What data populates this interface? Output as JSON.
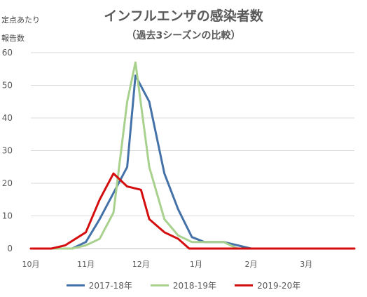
{
  "chart_data": {
    "type": "line",
    "title": "インフルエンザの感染者数",
    "subtitle": "（過去3シーズンの比較）",
    "ylabel_lines": [
      "定点あたり",
      "報告数"
    ],
    "ylim": [
      0,
      60
    ],
    "yticks": [
      0,
      10,
      20,
      30,
      40,
      50,
      60
    ],
    "x_range": [
      0,
      23.5
    ],
    "xticks": [
      {
        "label": "10月",
        "x": 0
      },
      {
        "label": "11月",
        "x": 4
      },
      {
        "label": "12月",
        "x": 8
      },
      {
        "label": "1月",
        "x": 12
      },
      {
        "label": "2月",
        "x": 16
      },
      {
        "label": "3月",
        "x": 20
      }
    ],
    "grid": true,
    "legend_position": "bottom",
    "series": [
      {
        "name": "2017-18年",
        "color": "#4472a8",
        "points": [
          [
            0,
            0
          ],
          [
            1.5,
            0
          ],
          [
            3,
            0
          ],
          [
            4,
            2
          ],
          [
            5,
            9
          ],
          [
            6,
            17
          ],
          [
            7,
            25
          ],
          [
            7.6,
            53
          ],
          [
            8.6,
            45
          ],
          [
            9.7,
            23
          ],
          [
            10.7,
            12
          ],
          [
            11.7,
            3.5
          ],
          [
            12.6,
            2
          ],
          [
            14,
            2
          ],
          [
            16,
            0
          ],
          [
            23.5,
            0
          ]
        ]
      },
      {
        "name": "2018-19年",
        "color": "#a9d18e",
        "points": [
          [
            0,
            0
          ],
          [
            3,
            0
          ],
          [
            4,
            1
          ],
          [
            5,
            3
          ],
          [
            6,
            11
          ],
          [
            7,
            45
          ],
          [
            7.6,
            57
          ],
          [
            8.6,
            25
          ],
          [
            9.7,
            9
          ],
          [
            10.7,
            4
          ],
          [
            11.7,
            2
          ],
          [
            12.6,
            2
          ],
          [
            14,
            2
          ],
          [
            15,
            0
          ],
          [
            23.5,
            0
          ]
        ]
      },
      {
        "name": "2019-20年",
        "color": "#d40e0e",
        "points": [
          [
            0,
            0
          ],
          [
            1.5,
            0
          ],
          [
            2.5,
            1
          ],
          [
            4,
            5
          ],
          [
            5,
            15
          ],
          [
            6,
            23
          ],
          [
            7,
            19
          ],
          [
            8,
            18
          ],
          [
            8.6,
            9
          ],
          [
            9.7,
            5
          ],
          [
            10.7,
            3
          ],
          [
            11.5,
            0
          ],
          [
            23.5,
            0
          ]
        ]
      }
    ]
  }
}
